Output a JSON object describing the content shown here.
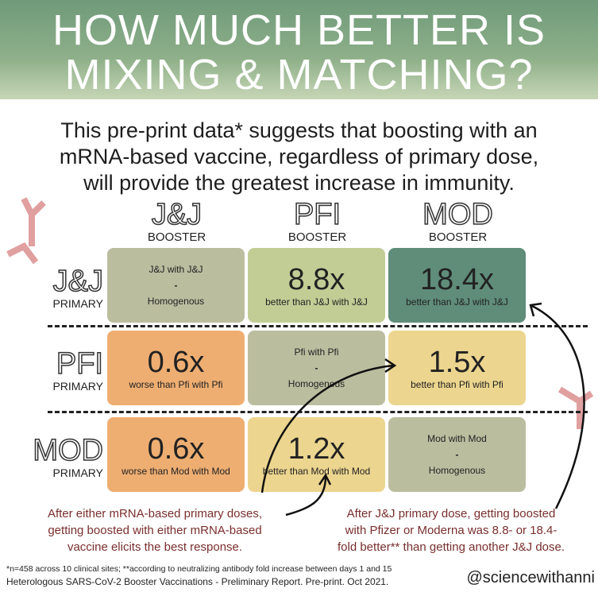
{
  "title": {
    "line1": "HOW MUCH BETTER IS",
    "line2": "MIXING & MATCHING?"
  },
  "subtitle": {
    "line1": "This pre-print data* suggests that boosting with an",
    "line2": "mRNA-based vaccine, regardless of primary dose,",
    "line3": "will provide the greatest increase in immunity."
  },
  "columns": [
    {
      "name": "J&J",
      "label": "BOOSTER"
    },
    {
      "name": "PFI",
      "label": "BOOSTER"
    },
    {
      "name": "MOD",
      "label": "BOOSTER"
    }
  ],
  "rows": [
    {
      "name": "J&J",
      "label": "PRIMARY"
    },
    {
      "name": "PFI",
      "label": "PRIMARY"
    },
    {
      "name": "MOD",
      "label": "PRIMARY"
    }
  ],
  "cells": [
    [
      {
        "type": "homo",
        "top": "J&J with J&J",
        "mid": "-",
        "bottom": "Homogenous",
        "color": "#bbbd9f"
      },
      {
        "value": "8.8x",
        "desc": "better than J&J with J&J",
        "color": "#c2cd96"
      },
      {
        "value": "18.4x",
        "desc": "better than J&J with J&J",
        "color": "#5f8d7a"
      }
    ],
    [
      {
        "value": "0.6x",
        "desc": "worse than Pfi with Pfi",
        "color": "#eeae72"
      },
      {
        "type": "homo",
        "top": "Pfi with Pfi",
        "mid": "-",
        "bottom": "Homogenous",
        "color": "#bbbd9f"
      },
      {
        "value": "1.5x",
        "desc": "better than Pfi with Pfi",
        "color": "#ecd58f"
      }
    ],
    [
      {
        "value": "0.6x",
        "desc": "worse than Mod with Mod",
        "color": "#eeae72"
      },
      {
        "value": "1.2x",
        "desc": "better than Mod with Mod",
        "color": "#ecd58f"
      },
      {
        "type": "homo",
        "top": "Mod with Mod",
        "mid": "-",
        "bottom": "Homogenous",
        "color": "#bbbd9f"
      }
    ]
  ],
  "notes": {
    "left": [
      "After either mRNA-based primary doses,",
      "getting boosted with either mRNA-based",
      "vaccine elicits the best response."
    ],
    "right": [
      "After J&J primary dose, getting boosted",
      "with Pfizer or Moderna was 8.8- or 18.4-",
      "fold better** than getting another J&J dose."
    ]
  },
  "footnote": {
    "line1": "*n=458 across 10 clinical sites; **according to neutralizing antibody fold increase between days 1 and 15",
    "line2": "Heterologous SARS-CoV-2 Booster Vaccinations - Preliminary Report. Pre-print. Oct 2021."
  },
  "handle": "@sciencewithanni"
}
